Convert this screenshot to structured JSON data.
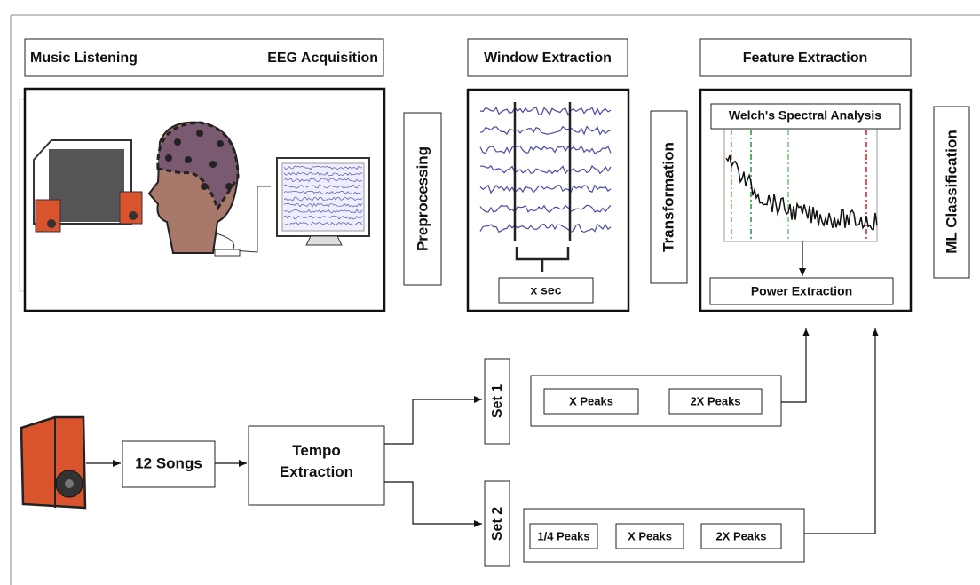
{
  "header": {
    "music_listening": "Music Listening",
    "eeg_acquisition": "EEG Acquisition",
    "window_extraction": "Window Extraction",
    "feature_extraction": "Feature Extraction"
  },
  "stages": {
    "preprocessing": "Preprocessing",
    "transformation": "Transformation",
    "ml_classification": "ML Classification"
  },
  "window": {
    "label": "x sec"
  },
  "feature": {
    "spectral": "Welch's Spectral Analysis",
    "power": "Power Extraction"
  },
  "tempo": {
    "songs": "12 Songs",
    "extraction": "Tempo Extraction"
  },
  "sets": [
    {
      "label": "Set 1",
      "peaks": [
        "X Peaks",
        "2X Peaks"
      ]
    },
    {
      "label": "Set 2",
      "peaks": [
        "1/4 Peaks",
        "X Peaks",
        "2X Peaks"
      ]
    }
  ]
}
